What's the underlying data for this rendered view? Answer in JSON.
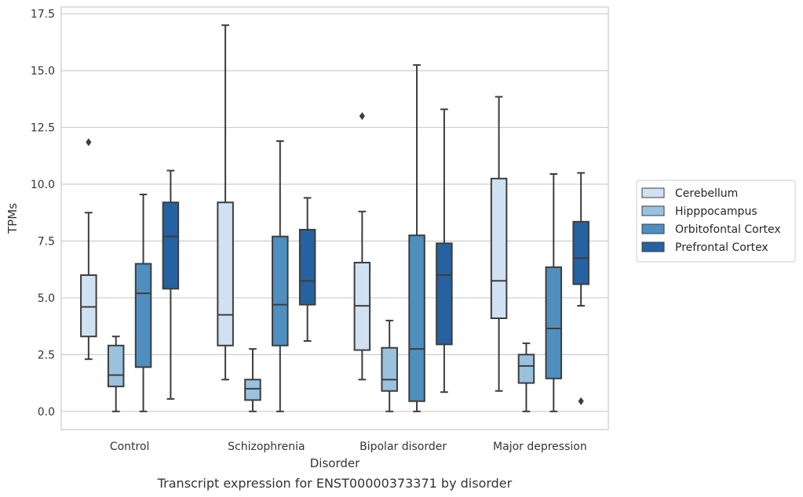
{
  "caption": "Transcript expression for ENST00000373371 by disorder",
  "chart_data": {
    "type": "box",
    "xlabel": "Disorder",
    "ylabel": "TPMs",
    "ylim": [
      -0.8,
      17.8
    ],
    "yticks": [
      "0.0",
      "2.5",
      "5.0",
      "7.5",
      "10.0",
      "12.5",
      "15.0",
      "17.5"
    ],
    "ytick_values": [
      0,
      2.5,
      5,
      7.5,
      10,
      12.5,
      15,
      17.5
    ],
    "grid": "horizontal",
    "legend_position": "right",
    "categories": [
      "Control",
      "Schizophrenia",
      "Bipolar disorder",
      "Major depression"
    ],
    "series": [
      {
        "name": "Cerebellum",
        "color": "#d0e1f2",
        "boxes": [
          {
            "whislo": 2.3,
            "q1": 3.3,
            "med": 4.6,
            "q3": 6.0,
            "whishi": 8.75,
            "fliers": [
              11.85
            ]
          },
          {
            "whislo": 1.4,
            "q1": 2.9,
            "med": 4.25,
            "q3": 9.2,
            "whishi": 17.0,
            "fliers": []
          },
          {
            "whislo": 1.4,
            "q1": 2.7,
            "med": 4.65,
            "q3": 6.55,
            "whishi": 8.8,
            "fliers": [
              13.0
            ]
          },
          {
            "whislo": 0.9,
            "q1": 4.1,
            "med": 5.75,
            "q3": 10.25,
            "whishi": 13.85,
            "fliers": []
          }
        ]
      },
      {
        "name": "Hipppocampus",
        "color": "#9ac2df",
        "boxes": [
          {
            "whislo": 0.0,
            "q1": 1.1,
            "med": 1.6,
            "q3": 2.9,
            "whishi": 3.3,
            "fliers": []
          },
          {
            "whislo": 0.0,
            "q1": 0.5,
            "med": 1.0,
            "q3": 1.4,
            "whishi": 2.75,
            "fliers": []
          },
          {
            "whislo": 0.0,
            "q1": 0.9,
            "med": 1.4,
            "q3": 2.8,
            "whishi": 4.0,
            "fliers": []
          },
          {
            "whislo": 0.0,
            "q1": 1.25,
            "med": 2.0,
            "q3": 2.5,
            "whishi": 3.0,
            "fliers": []
          }
        ]
      },
      {
        "name": "Orbitofontal Cortex",
        "color": "#4f8fc0",
        "boxes": [
          {
            "whislo": 0.0,
            "q1": 1.95,
            "med": 5.2,
            "q3": 6.5,
            "whishi": 9.55,
            "fliers": []
          },
          {
            "whislo": 0.0,
            "q1": 2.9,
            "med": 4.7,
            "q3": 7.7,
            "whishi": 11.9,
            "fliers": []
          },
          {
            "whislo": 0.0,
            "q1": 0.45,
            "med": 2.75,
            "q3": 7.75,
            "whishi": 15.25,
            "fliers": []
          },
          {
            "whislo": 0.0,
            "q1": 1.45,
            "med": 3.65,
            "q3": 6.35,
            "whishi": 10.45,
            "fliers": []
          }
        ]
      },
      {
        "name": "Prefrontal Cortex",
        "color": "#2562a2",
        "boxes": [
          {
            "whislo": 0.55,
            "q1": 5.4,
            "med": 7.7,
            "q3": 9.2,
            "whishi": 10.6,
            "fliers": []
          },
          {
            "whislo": 3.1,
            "q1": 4.7,
            "med": 5.75,
            "q3": 8.0,
            "whishi": 9.4,
            "fliers": []
          },
          {
            "whislo": 0.85,
            "q1": 2.95,
            "med": 6.0,
            "q3": 7.4,
            "whishi": 13.3,
            "fliers": []
          },
          {
            "whislo": 4.65,
            "q1": 5.6,
            "med": 6.75,
            "q3": 8.35,
            "whishi": 10.5,
            "fliers": [
              0.45
            ]
          }
        ]
      }
    ]
  }
}
